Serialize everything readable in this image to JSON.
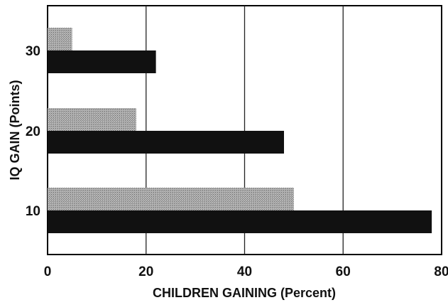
{
  "chart_data": {
    "type": "bar",
    "orientation": "horizontal",
    "categories": [
      "30",
      "20",
      "10"
    ],
    "series": [
      {
        "values": [
          5,
          18,
          50
        ],
        "color": "#9a9a9a"
      },
      {
        "values": [
          22,
          48,
          78
        ],
        "color": "#111111"
      }
    ],
    "xlabel": "CHILDREN GAINING (Percent)",
    "ylabel": "IQ GAIN (Points)",
    "xlim": [
      0,
      80
    ],
    "xticks": [
      "0",
      "20",
      "40",
      "60",
      "80"
    ],
    "grid": "vertical"
  }
}
